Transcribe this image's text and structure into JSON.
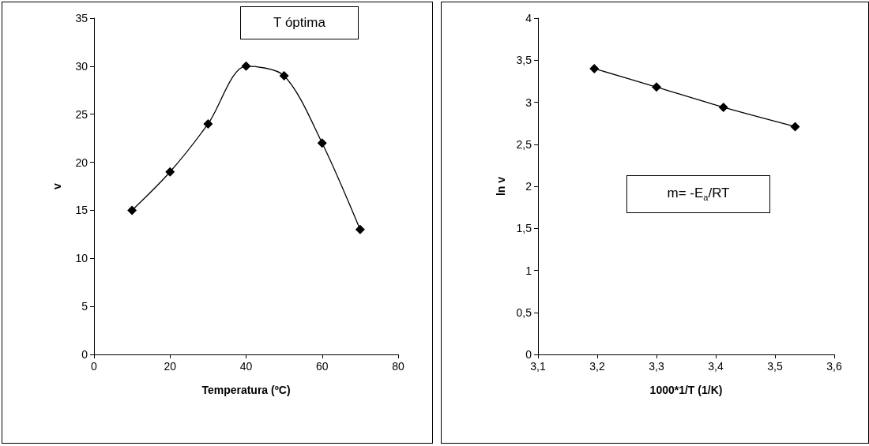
{
  "chart_data": [
    {
      "type": "line",
      "xlabel": "Temperatura (ºC)",
      "ylabel": "v",
      "annotations": [
        "T óptima"
      ],
      "x": [
        10,
        20,
        30,
        40,
        50,
        60,
        70
      ],
      "series": [
        {
          "color": "#000000",
          "values": [
            15,
            19,
            24,
            30,
            29,
            22,
            13
          ]
        }
      ],
      "xlim": [
        0,
        80
      ],
      "xticks": [
        0,
        20,
        40,
        60,
        80
      ],
      "ylim": [
        0,
        35
      ],
      "yticks": [
        0,
        5,
        10,
        15,
        20,
        25,
        30,
        35
      ],
      "grid": false,
      "marker": "diamond",
      "line_style": "solid"
    },
    {
      "type": "line",
      "xlabel": "1000*1/T (1/K)",
      "ylabel": "ln v",
      "annotations": [
        "m= -E$_{a}$/RT"
      ],
      "x": [
        3.195,
        3.3,
        3.413,
        3.534
      ],
      "series": [
        {
          "color": "#000000",
          "values": [
            3.4,
            3.18,
            2.94,
            2.71
          ]
        }
      ],
      "xlim": [
        3.1,
        3.6
      ],
      "xticks": [
        {
          "value": 3.1,
          "label": "3,1"
        },
        {
          "value": 3.2,
          "label": "3,2"
        },
        {
          "value": 3.3,
          "label": "3,3"
        },
        {
          "value": 3.4,
          "label": "3,4"
        },
        {
          "value": 3.5,
          "label": "3,5"
        },
        {
          "value": 3.6,
          "label": "3,6"
        }
      ],
      "ylim": [
        0,
        4
      ],
      "yticks": [
        0,
        {
          "value": 0.5,
          "label": "0,5"
        },
        1,
        {
          "value": 1.5,
          "label": "1,5"
        },
        2,
        {
          "value": 2.5,
          "label": "2,5"
        },
        3,
        {
          "value": 3.5,
          "label": "3,5"
        },
        4
      ],
      "grid": false,
      "marker": "diamond",
      "line_style": "solid"
    }
  ]
}
